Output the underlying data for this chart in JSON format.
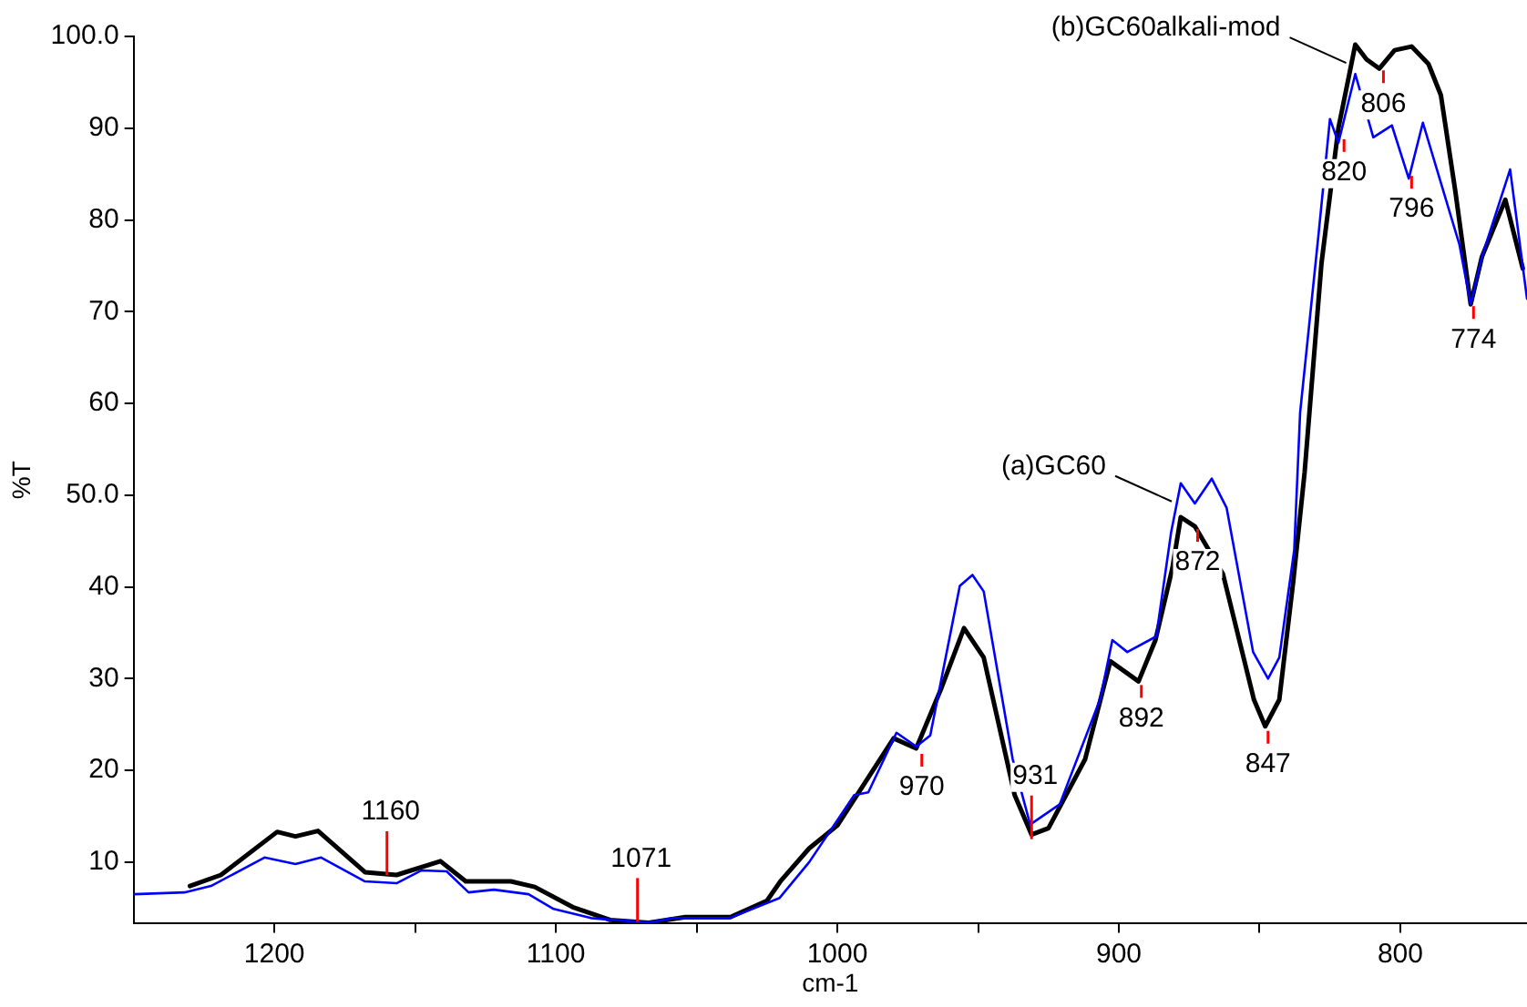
{
  "chart_data": {
    "type": "line",
    "xlabel": "cm-1",
    "ylabel": "%T",
    "xlim": [
      1250,
      755
    ],
    "xticks": [
      1200,
      {
        "value": 1150,
        "label": null
      },
      1100,
      {
        "value": 1050,
        "label": null
      },
      1000,
      {
        "value": 950,
        "label": null
      },
      900,
      {
        "value": 850,
        "label": null
      },
      800
    ],
    "ylim": [
      3.3,
      100
    ],
    "yticks": [
      10,
      20,
      30,
      40,
      {
        "value": 50,
        "label": "50.0"
      },
      60,
      70,
      80,
      90,
      {
        "value": 100,
        "label": "100.0"
      }
    ],
    "grid": false,
    "legend": false,
    "marker": "none",
    "line_style": "solid",
    "series": [
      {
        "name": "(a)GC60",
        "color": "#0000ff",
        "x": [
          1250,
          1232,
          1222.5,
          1203.5,
          1192.5,
          1183.4,
          1167.8,
          1156.6,
          1147.7,
          1138.8,
          1131,
          1122,
          1109.7,
          1100.8,
          1087.5,
          1067,
          1058.4,
          1038.3,
          1020.5,
          1010,
          994,
          989,
          979,
          972,
          967,
          956.5,
          952,
          948,
          937.7,
          931.5,
          921,
          906.6,
          902.3,
          897,
          886.7,
          881.4,
          878,
          873,
          867,
          861.7,
          852.3,
          847,
          843,
          837.7,
          835.6,
          829,
          825,
          822,
          816,
          809.6,
          803,
          797,
          792,
          779,
          775,
          771,
          761,
          755
        ],
        "values": [
          6.5,
          6.7,
          7.4,
          10.5,
          9.8,
          10.5,
          7.9,
          7.7,
          9.1,
          9,
          6.7,
          7,
          6.5,
          4.9,
          3.9,
          3.4,
          3.9,
          3.9,
          6.1,
          10,
          17.3,
          17.6,
          24.1,
          22.6,
          23.8,
          40.1,
          41.3,
          39.5,
          21.2,
          14.1,
          16.3,
          27.8,
          34.2,
          32.9,
          34.6,
          46,
          51.3,
          49.1,
          51.8,
          48.6,
          32.9,
          30,
          32.3,
          44,
          59,
          78.6,
          91,
          88.4,
          95.9,
          89,
          90.3,
          84.5,
          90.6,
          77.3,
          70.8,
          76,
          85.5,
          71.4
        ]
      },
      {
        "name": "(b)GC60alkali-mod",
        "color": "#000000",
        "x": [
          1230,
          1219,
          1199,
          1192.5,
          1184.5,
          1167.8,
          1156.6,
          1141,
          1132,
          1116,
          1107.5,
          1094,
          1080.7,
          1067,
          1054,
          1038,
          1025,
          1020,
          1010,
          1000,
          980,
          972,
          963,
          955,
          948,
          937,
          931,
          925,
          912,
          903,
          893,
          887,
          881,
          878,
          873,
          863,
          852,
          848,
          843,
          838,
          834,
          828,
          822,
          816,
          812,
          807.5,
          802,
          796,
          790,
          785.6,
          780.4,
          775,
          771,
          762.7,
          756.5
        ],
        "values": [
          7.4,
          8.6,
          13.3,
          12.8,
          13.4,
          8.9,
          8.6,
          10.1,
          7.9,
          7.9,
          7.3,
          5.1,
          3.7,
          3.4,
          4,
          4,
          5.8,
          8,
          11.5,
          14,
          23.5,
          22.4,
          29,
          35.5,
          32.3,
          17.3,
          13,
          13.7,
          21.2,
          31.9,
          29.7,
          34.2,
          42,
          47.6,
          46.6,
          41.4,
          27.7,
          24.8,
          27.7,
          40.7,
          52.5,
          75.3,
          90,
          99.1,
          97.5,
          96.5,
          98.5,
          98.9,
          97,
          93.6,
          83,
          70.8,
          76,
          82.2,
          74.7
        ]
      }
    ],
    "annotations": [
      {
        "text": "1160",
        "x": 1160,
        "y": 8.6
      },
      {
        "text": "1071",
        "x": 1071,
        "y": 3.5
      },
      {
        "text": "970",
        "x": 970,
        "y": 22
      },
      {
        "text": "931",
        "x": 931,
        "y": 12.5
      },
      {
        "text": "892",
        "x": 892,
        "y": 29.5
      },
      {
        "text": "872",
        "x": 872,
        "y": 46.5
      },
      {
        "text": "847",
        "x": 847,
        "y": 24.5
      },
      {
        "text": "820",
        "x": 820,
        "y": 89
      },
      {
        "text": "806",
        "x": 806,
        "y": 96.5
      },
      {
        "text": "796",
        "x": 796,
        "y": 85
      },
      {
        "text": "774",
        "x": 774,
        "y": 70.8
      }
    ]
  }
}
